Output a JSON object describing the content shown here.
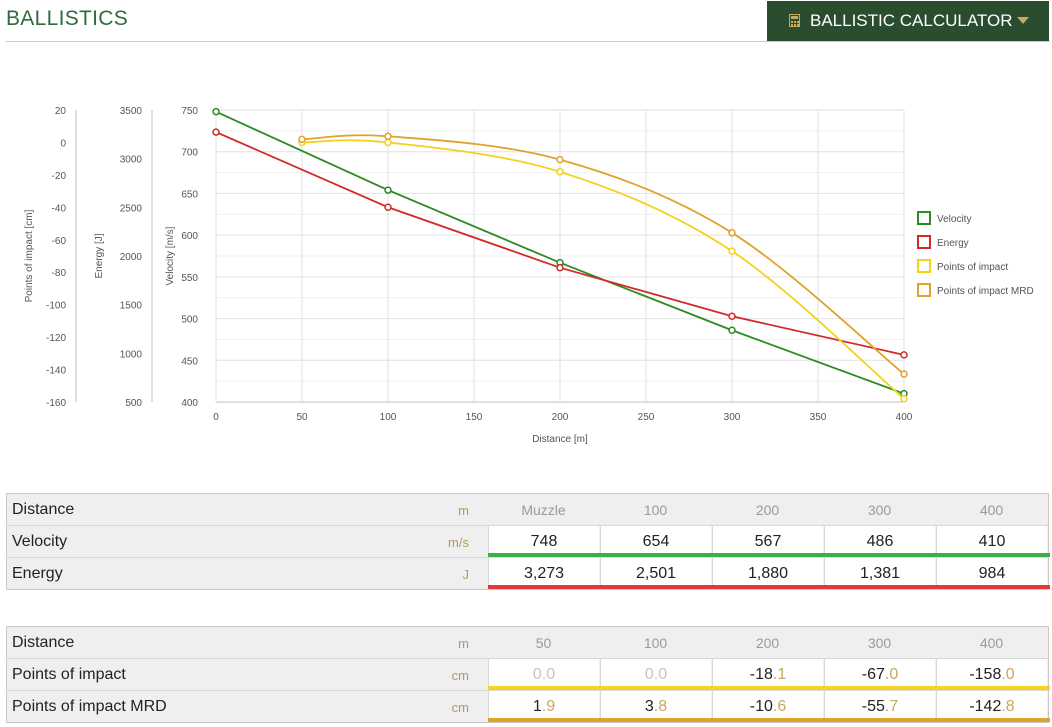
{
  "header": {
    "title": "BALLISTICS",
    "calculator_label": "BALLISTIC CALCULATOR"
  },
  "chart_data": {
    "type": "line",
    "xlabel": "Distance [m]",
    "x_ticks": [
      0,
      50,
      100,
      150,
      200,
      250,
      300,
      350,
      400
    ],
    "xlim": [
      0,
      400
    ],
    "axes": [
      {
        "label": "Points of impact [cm]",
        "ticks": [
          20,
          0,
          -20,
          -40,
          -60,
          -80,
          -100,
          -120,
          -140,
          -160
        ],
        "range": [
          -160,
          20
        ]
      },
      {
        "label": "Energy [J]",
        "ticks": [
          3500,
          3000,
          2500,
          2000,
          1500,
          1000,
          500
        ],
        "range": [
          500,
          3500
        ]
      },
      {
        "label": "Velocity [m/s]",
        "ticks": [
          750,
          700,
          650,
          600,
          550,
          500,
          450,
          400
        ],
        "range": [
          400,
          750
        ]
      }
    ],
    "series": [
      {
        "name": "Velocity",
        "color": "#2e8b23",
        "axis": 2,
        "smooth": false,
        "x": [
          0,
          100,
          200,
          300,
          400
        ],
        "y": [
          748,
          654,
          567,
          486,
          410
        ]
      },
      {
        "name": "Energy",
        "color": "#d22a2a",
        "axis": 1,
        "smooth": false,
        "x": [
          0,
          100,
          200,
          300,
          400
        ],
        "y": [
          3273,
          2501,
          1880,
          1381,
          984
        ]
      },
      {
        "name": "Points of impact",
        "color": "#f2d21b",
        "axis": 0,
        "smooth": true,
        "x": [
          50,
          100,
          200,
          300,
          400
        ],
        "y": [
          0,
          0,
          -18.1,
          -67.0,
          -158.0
        ]
      },
      {
        "name": "Points of impact MRD",
        "color": "#e0a22a",
        "axis": 0,
        "smooth": true,
        "x": [
          50,
          100,
          200,
          300,
          400
        ],
        "y": [
          1.9,
          3.8,
          -10.6,
          -55.7,
          -142.8
        ]
      }
    ],
    "legend_position": "right",
    "grid": true
  },
  "table1": {
    "header": {
      "label": "Distance",
      "unit": "m",
      "cells": [
        "Muzzle",
        "100",
        "200",
        "300",
        "400"
      ]
    },
    "rows": [
      {
        "label": "Velocity",
        "unit": "m/s",
        "cells": [
          "748",
          "654",
          "567",
          "486",
          "410"
        ],
        "bar_color": "#3fae49"
      },
      {
        "label": "Energy",
        "unit": "J",
        "cells": [
          "3,273",
          "2,501",
          "1,880",
          "1,381",
          "984"
        ],
        "bar_color": "#e03a3a"
      }
    ]
  },
  "table2": {
    "header": {
      "label": "Distance",
      "unit": "m",
      "cells": [
        "50",
        "100",
        "200",
        "300",
        "400"
      ]
    },
    "rows": [
      {
        "label": "Points of impact",
        "unit": "cm",
        "bar_color": "#f5d320",
        "cells": [
          {
            "int": "0",
            "dec": ".0",
            "muted": true
          },
          {
            "int": "0",
            "dec": ".0",
            "muted": true
          },
          {
            "int": "-18",
            "dec": ".1"
          },
          {
            "int": "-67",
            "dec": ".0"
          },
          {
            "int": "-158",
            "dec": ".0"
          }
        ]
      },
      {
        "label": "Points of impact MRD",
        "unit": "cm",
        "bar_color": "#e0a22a",
        "cells": [
          {
            "int": "1",
            "dec": ".9"
          },
          {
            "int": "3",
            "dec": ".8"
          },
          {
            "int": "-10",
            "dec": ".6"
          },
          {
            "int": "-55",
            "dec": ".7"
          },
          {
            "int": "-142",
            "dec": ".8"
          }
        ]
      }
    ]
  }
}
